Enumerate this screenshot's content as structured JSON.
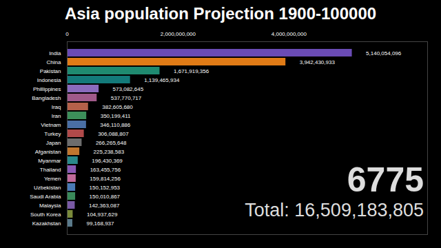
{
  "chart_data": {
    "type": "bar",
    "orientation": "horizontal",
    "title": "Asia population Projection 1900-100000",
    "categories": [
      "India",
      "China",
      "Pakistan",
      "Indonesia",
      "Phillippines",
      "Bangladesh",
      "Iraq",
      "Iran",
      "Vietnam",
      "Turkey",
      "Japan",
      "Afganistan",
      "Myanmar",
      "Thailand",
      "Yemen",
      "Uzbekistan",
      "Saudi Arabia",
      "Malaysia",
      "South Korea",
      "Kazakhstan"
    ],
    "values": [
      5140054096,
      3942430933,
      1671919356,
      1139465934,
      573082645,
      537770717,
      382605680,
      350199411,
      346110886,
      306088807,
      266265648,
      225238583,
      196430369,
      163455756,
      159814256,
      150152953,
      150010867,
      142363087,
      104937629,
      99168937
    ],
    "value_labels": [
      "5,140,054,096",
      "3,942,430,933",
      "1,671,919,356",
      "1,139,465,934",
      "573,082,645",
      "537,770,717",
      "382,605,680",
      "350,199,411",
      "346,110,886",
      "306,088,807",
      "266,265,648",
      "225,238,583",
      "196,430,369",
      "163,455,756",
      "159,814,256",
      "150,152,953",
      "150,010,867",
      "142,363,087",
      "104,937,629",
      "99,168,937"
    ],
    "colors": [
      "#6a4bb5",
      "#e07b16",
      "#1f8a70",
      "#137a7a",
      "#8a6bbd",
      "#a05a8a",
      "#b5614a",
      "#3d8f5a",
      "#4a6fa5",
      "#b04a4a",
      "#6d6d6d",
      "#c0762e",
      "#2a8a8a",
      "#8a5ab5",
      "#c06a9a",
      "#4a7ab5",
      "#3a8a5a",
      "#7a5aa5",
      "#7a8a3a",
      "#5a7a8a"
    ],
    "xlim": [
      0,
      6500000000
    ],
    "xticks": [
      {
        "value": 0,
        "label": "0"
      },
      {
        "value": 2000000000,
        "label": "2,000,000,000"
      },
      {
        "value": 4000000000,
        "label": "4,000,000,000"
      }
    ],
    "data_labels": true,
    "grid": false,
    "annotations": [
      "6775",
      "Total: 16,509,183,805"
    ]
  }
}
